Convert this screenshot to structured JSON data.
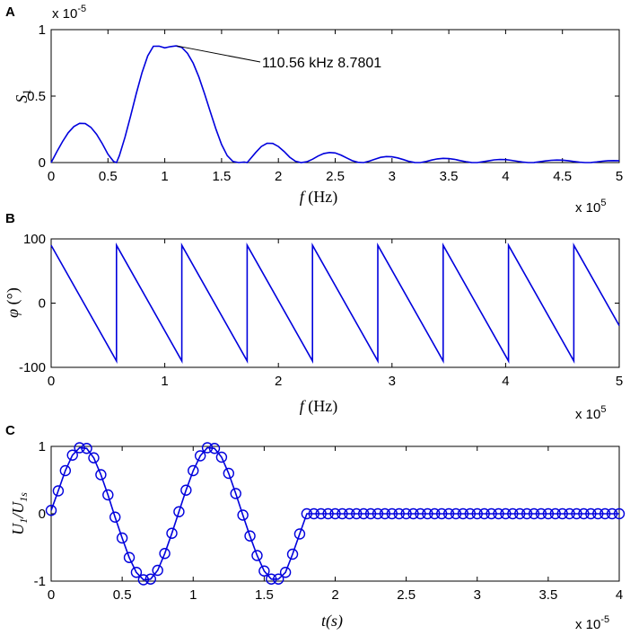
{
  "chart_data": [
    {
      "panel_label": "A",
      "type": "line",
      "xlabel_italic": "f",
      "xlabel_unit": " (Hz)",
      "ylabel_main": "S",
      "ylabel_sub": "1",
      "y_multiplier_base": "x 10",
      "y_multiplier_exp": "-5",
      "x_multiplier_base": "x 10",
      "x_multiplier_exp": "5",
      "xlim": [
        0,
        5
      ],
      "ylim": [
        0,
        1
      ],
      "xticks": [
        0,
        0.5,
        1,
        1.5,
        2,
        2.5,
        3,
        3.5,
        4,
        4.5,
        5
      ],
      "xtick_labels": [
        "0",
        "0.5",
        "1",
        "1.5",
        "2",
        "2.5",
        "3",
        "3.5",
        "4",
        "4.5",
        "5"
      ],
      "yticks": [
        0,
        0.5,
        1
      ],
      "ytick_labels": [
        "0",
        "0.5",
        "1"
      ],
      "color": "#0000dd",
      "series": [
        {
          "x": [
            0,
            0.05,
            0.1,
            0.15,
            0.2,
            0.25,
            0.3,
            0.35,
            0.4,
            0.45,
            0.5,
            0.55,
            0.575,
            0.6,
            0.65,
            0.7,
            0.75,
            0.8,
            0.85,
            0.9,
            0.95,
            1.0,
            1.05,
            1.1,
            1.15,
            1.2,
            1.25,
            1.3,
            1.35,
            1.4,
            1.45,
            1.5,
            1.55,
            1.6,
            1.65,
            1.7,
            1.725,
            1.75,
            1.8,
            1.85,
            1.9,
            1.95,
            2.0,
            2.05,
            2.1,
            2.15,
            2.2,
            2.25,
            2.3,
            2.35,
            2.4,
            2.45,
            2.5,
            2.55,
            2.6,
            2.65,
            2.7,
            2.75,
            2.8,
            2.85,
            2.9,
            2.95,
            3.0,
            3.05,
            3.1,
            3.15,
            3.2,
            3.25,
            3.3,
            3.35,
            3.4,
            3.45,
            3.5,
            3.55,
            3.6,
            3.65,
            3.7,
            3.75,
            3.8,
            3.85,
            3.9,
            3.95,
            4.0,
            4.05,
            4.1,
            4.15,
            4.2,
            4.25,
            4.3,
            4.35,
            4.4,
            4.45,
            4.5,
            4.55,
            4.6,
            4.65,
            4.7,
            4.75,
            4.8,
            4.85,
            4.9,
            4.95,
            5.0
          ],
          "y": [
            0.0,
            0.081,
            0.158,
            0.224,
            0.271,
            0.295,
            0.293,
            0.265,
            0.213,
            0.142,
            0.063,
            0.008,
            0.0,
            0.052,
            0.191,
            0.352,
            0.52,
            0.678,
            0.803,
            0.875,
            0.876,
            0.863,
            0.872,
            0.878,
            0.866,
            0.822,
            0.747,
            0.644,
            0.519,
            0.385,
            0.252,
            0.136,
            0.052,
            0.008,
            0.0,
            0.004,
            0.0,
            0.024,
            0.076,
            0.121,
            0.145,
            0.144,
            0.121,
            0.084,
            0.04,
            0.01,
            0.0,
            0.006,
            0.025,
            0.049,
            0.068,
            0.076,
            0.072,
            0.057,
            0.035,
            0.014,
            0.002,
            0.0,
            0.011,
            0.026,
            0.039,
            0.045,
            0.043,
            0.035,
            0.022,
            0.009,
            0.001,
            0.0,
            0.008,
            0.019,
            0.028,
            0.032,
            0.03,
            0.024,
            0.015,
            0.007,
            0.001,
            0.0,
            0.006,
            0.013,
            0.02,
            0.023,
            0.022,
            0.017,
            0.01,
            0.004,
            0.0,
            0.001,
            0.006,
            0.012,
            0.017,
            0.019,
            0.018,
            0.014,
            0.008,
            0.003,
            0.0,
            0.001,
            0.005,
            0.01,
            0.014,
            0.015,
            0.014
          ]
        }
      ],
      "annotation": {
        "text": "110.56 kHz   8.7801",
        "x": 1.1056,
        "y": 0.878
      }
    },
    {
      "panel_label": "B",
      "type": "line",
      "xlabel_italic": "f",
      "xlabel_unit": " (Hz)",
      "ylabel_main": "φ",
      "ylabel_unit": " (°)",
      "x_multiplier_base": "x 10",
      "x_multiplier_exp": "5",
      "xlim": [
        0,
        5
      ],
      "ylim": [
        -100,
        100
      ],
      "xticks": [
        0,
        1,
        2,
        3,
        4,
        5
      ],
      "xtick_labels": [
        "0",
        "1",
        "2",
        "3",
        "4",
        "5"
      ],
      "yticks": [
        -100,
        0,
        100
      ],
      "ytick_labels": [
        "-100",
        "0",
        "100"
      ],
      "color": "#0000dd",
      "series": [
        {
          "x": [
            0,
            0.575,
            0.575,
            1.15,
            1.15,
            1.725,
            1.725,
            2.3,
            2.3,
            2.875,
            2.875,
            3.45,
            3.45,
            4.025,
            4.025,
            4.6,
            4.6,
            5.0
          ],
          "y": [
            90,
            -90,
            90,
            -90,
            90,
            -90,
            90,
            -90,
            90,
            -90,
            90,
            -90,
            90,
            -90,
            90,
            -90,
            90,
            -35
          ]
        }
      ]
    },
    {
      "panel_label": "C",
      "type": "line",
      "xlabel_main": "t",
      "xlabel_unit": "(s)",
      "ylabel_num": "U",
      "ylabel_num_sub": "1",
      "ylabel_den": "U",
      "ylabel_den_sub": "1s",
      "x_multiplier_base": "x 10",
      "x_multiplier_exp": "-5",
      "xlim": [
        0,
        4
      ],
      "ylim": [
        -1,
        1
      ],
      "xticks": [
        0,
        0.5,
        1,
        1.5,
        2,
        2.5,
        3,
        3.5,
        4
      ],
      "xtick_labels": [
        "0",
        "0.5",
        "1",
        "1.5",
        "2",
        "2.5",
        "3",
        "3.5",
        "4"
      ],
      "yticks": [
        -1,
        0,
        1
      ],
      "ytick_labels": [
        "-1",
        "0",
        "1"
      ],
      "color": "#0000dd",
      "marker": "circle-open",
      "series": [
        {
          "x": [
            0,
            0.05,
            0.1,
            0.15,
            0.2,
            0.25,
            0.3,
            0.35,
            0.4,
            0.45,
            0.5,
            0.55,
            0.6,
            0.65,
            0.7,
            0.75,
            0.8,
            0.85,
            0.9,
            0.95,
            1.0,
            1.05,
            1.1,
            1.15,
            1.2,
            1.25,
            1.3,
            1.35,
            1.4,
            1.45,
            1.5,
            1.55,
            1.6,
            1.65,
            1.7,
            1.75,
            1.8,
            1.85,
            1.9,
            1.95,
            2.0,
            2.05,
            2.1,
            2.15,
            2.2,
            2.25,
            2.3,
            2.35,
            2.4,
            2.45,
            2.5,
            2.55,
            2.6,
            2.65,
            2.7,
            2.75,
            2.8,
            2.85,
            2.9,
            2.95,
            3.0,
            3.05,
            3.1,
            3.15,
            3.2,
            3.25,
            3.3,
            3.35,
            3.4,
            3.45,
            3.5,
            3.55,
            3.6,
            3.65,
            3.7,
            3.75,
            3.8,
            3.85,
            3.9,
            3.95,
            4.0
          ],
          "y": [
            0.05,
            0.34,
            0.64,
            0.87,
            0.98,
            0.97,
            0.83,
            0.58,
            0.28,
            -0.05,
            -0.36,
            -0.65,
            -0.87,
            -0.98,
            -0.97,
            -0.84,
            -0.59,
            -0.29,
            0.03,
            0.35,
            0.64,
            0.86,
            0.98,
            0.97,
            0.84,
            0.6,
            0.3,
            -0.02,
            -0.33,
            -0.62,
            -0.85,
            -0.97,
            -0.97,
            -0.87,
            -0.6,
            -0.3,
            0.0,
            0.0,
            0.0,
            0.0,
            0.0,
            0.0,
            0.0,
            0.0,
            0.0,
            0.0,
            0.0,
            0.0,
            0.0,
            0.0,
            0.0,
            0.0,
            0.0,
            0.0,
            0.0,
            0.0,
            0.0,
            0.0,
            0.0,
            0.0,
            0.0,
            0.0,
            0.0,
            0.0,
            0.0,
            0.0,
            0.0,
            0.0,
            0.0,
            0.0,
            0.0,
            0.0,
            0.0,
            0.0,
            0.0,
            0.0,
            0.0,
            0.0,
            0.0,
            0.0,
            0.0
          ]
        }
      ]
    }
  ]
}
